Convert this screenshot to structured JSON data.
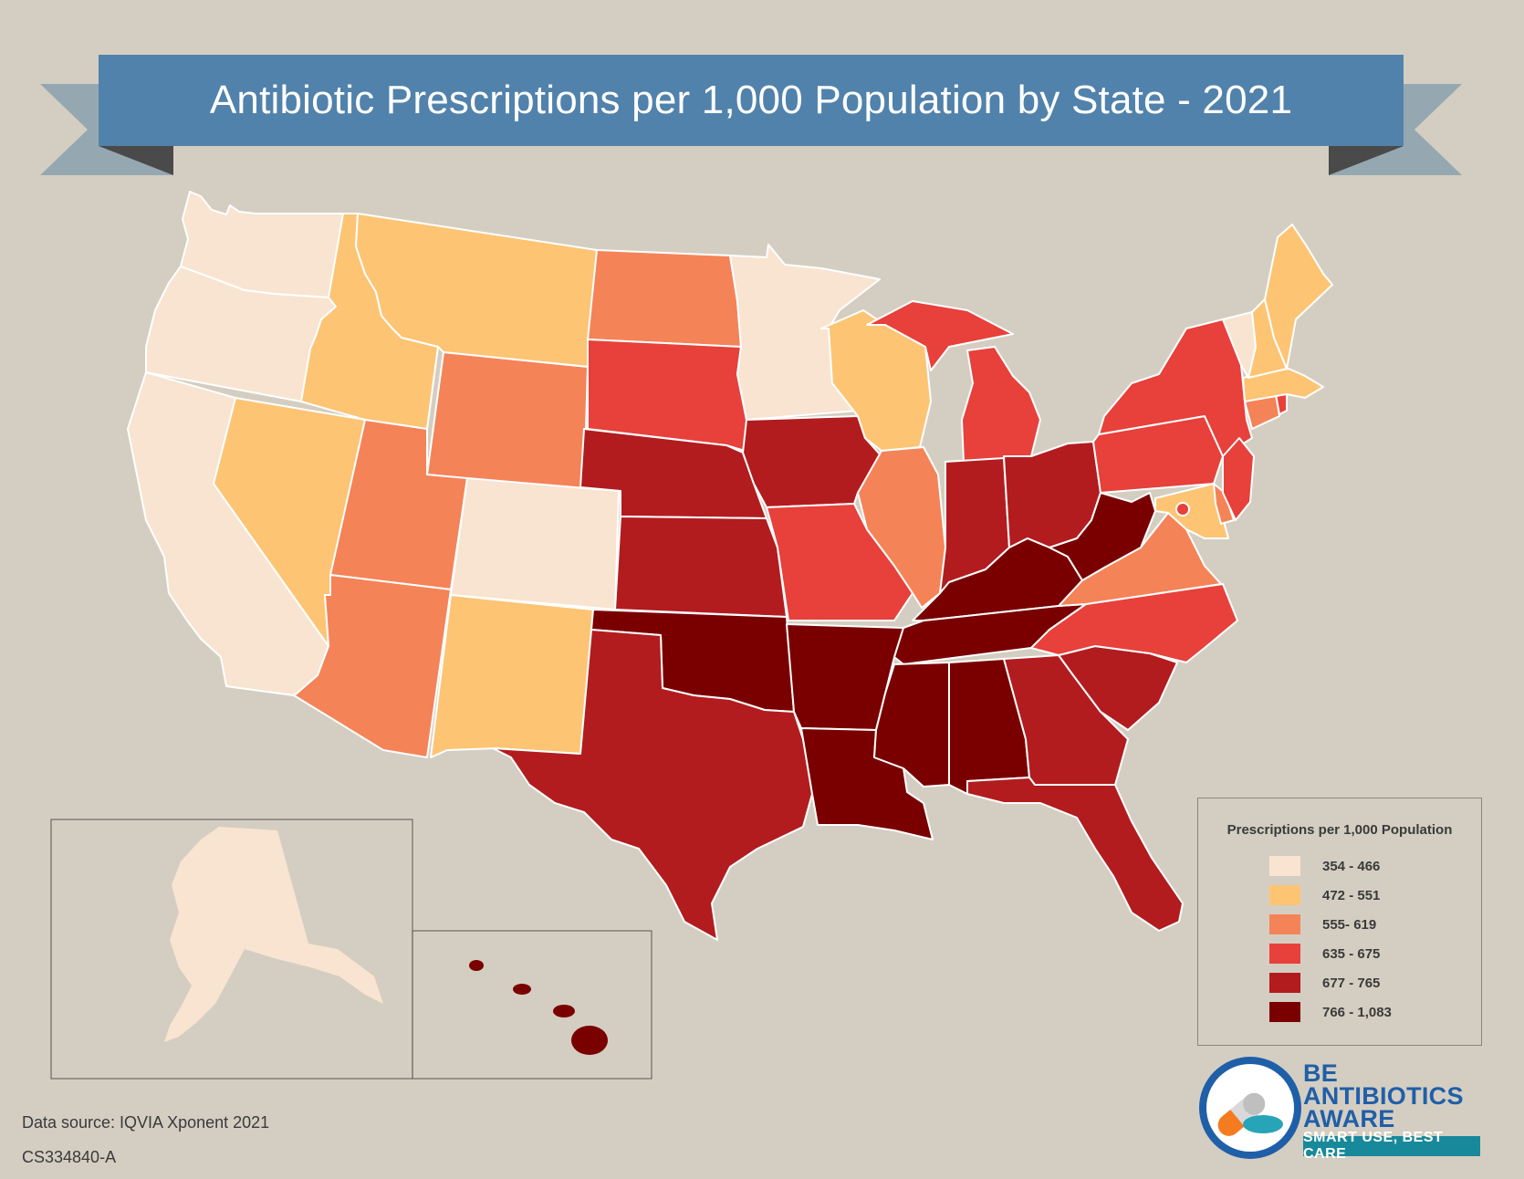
{
  "title": "Antibiotic Prescriptions per 1,000 Population by State - 2021",
  "legend": {
    "title": "Prescriptions per 1,000 Population",
    "classes": [
      {
        "label": "354 - 466",
        "color": "#f8e4d0"
      },
      {
        "label": "472 - 551",
        "color": "#fdc474"
      },
      {
        "label": "555- 619",
        "color": "#f58358"
      },
      {
        "label": "635 - 675",
        "color": "#e8403a"
      },
      {
        "label": "677 - 765",
        "color": "#b21c1f"
      },
      {
        "label": "766 - 1,083",
        "color": "#7a0000"
      }
    ]
  },
  "states": {
    "WA": 0,
    "OR": 0,
    "CA": 0,
    "CO": 0,
    "MN": 0,
    "VT": 0,
    "AK": 0,
    "ID": 1,
    "MT": 1,
    "NV": 1,
    "NM": 1,
    "WI": 1,
    "ME": 1,
    "NH": 1,
    "MA": 1,
    "MD": 1,
    "WY": 2,
    "ND": 2,
    "UT": 2,
    "AZ": 2,
    "IL": 2,
    "VA": 2,
    "CT": 2,
    "DE": 2,
    "SD": 3,
    "MO": 3,
    "MI": 3,
    "NY": 3,
    "PA": 3,
    "NJ": 3,
    "NC": 3,
    "RI": 3,
    "DC": 3,
    "NE": 4,
    "KS": 4,
    "IA": 4,
    "IN": 4,
    "OH": 4,
    "TX": 4,
    "GA": 4,
    "SC": 4,
    "FL": 4,
    "OK": 5,
    "AR": 5,
    "LA": 5,
    "MS": 5,
    "AL": 5,
    "TN": 5,
    "KY": 5,
    "WV": 5,
    "HI": 5
  },
  "footer": {
    "source": "Data source: IQVIA Xponent 2021",
    "code": "CS334840-A"
  },
  "logo": {
    "line1": "BE",
    "line2": "ANTIBIOTICS",
    "line3": "AWARE",
    "tagline": "SMART USE, BEST CARE"
  }
}
